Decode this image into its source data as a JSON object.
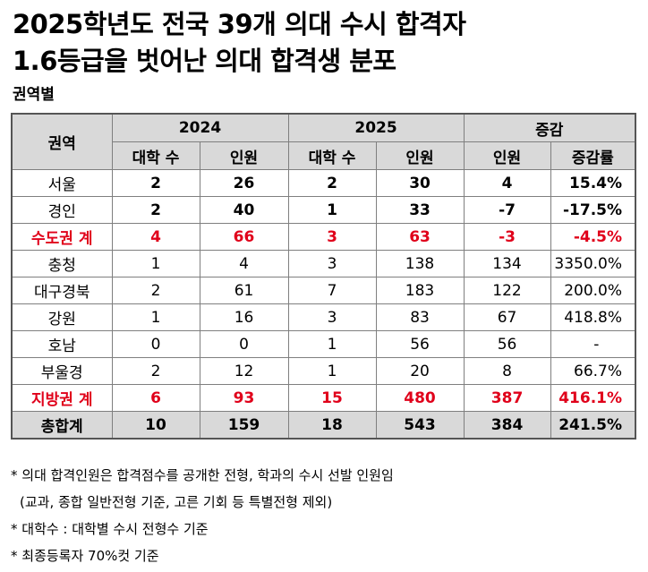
{
  "title_line1": "2025학년도 전국 39개 의대 수시 합격자",
  "title_line2": "1.6등급을 벗어난 의대 합격생 분포",
  "section_label": "권역별",
  "table": {
    "header": {
      "region": "권역",
      "y2024": "2024",
      "y2025": "2025",
      "change": "증감",
      "univ_count": "대학 수",
      "people": "인원",
      "rate": "증감률"
    },
    "rows": [
      {
        "region": "서울",
        "u24": "2",
        "p24": "26",
        "u25": "2",
        "p25": "30",
        "diff": "4",
        "rate": "15.4%",
        "style": "bold"
      },
      {
        "region": "경인",
        "u24": "2",
        "p24": "40",
        "u25": "1",
        "p25": "33",
        "diff": "-7",
        "rate": "-17.5%",
        "style": "bold"
      },
      {
        "region": "수도권 계",
        "u24": "4",
        "p24": "66",
        "u25": "3",
        "p25": "63",
        "diff": "-3",
        "rate": "-4.5%",
        "style": "sub"
      },
      {
        "region": "충청",
        "u24": "1",
        "p24": "4",
        "u25": "3",
        "p25": "138",
        "diff": "134",
        "rate": "3350.0%",
        "style": "normal"
      },
      {
        "region": "대구경북",
        "u24": "2",
        "p24": "61",
        "u25": "7",
        "p25": "183",
        "diff": "122",
        "rate": "200.0%",
        "style": "normal"
      },
      {
        "region": "강원",
        "u24": "1",
        "p24": "16",
        "u25": "3",
        "p25": "83",
        "diff": "67",
        "rate": "418.8%",
        "style": "normal"
      },
      {
        "region": "호남",
        "u24": "0",
        "p24": "0",
        "u25": "1",
        "p25": "56",
        "diff": "56",
        "rate": "-",
        "style": "normal"
      },
      {
        "region": "부울경",
        "u24": "2",
        "p24": "12",
        "u25": "1",
        "p25": "20",
        "diff": "8",
        "rate": "66.7%",
        "style": "normal"
      },
      {
        "region": "지방권 계",
        "u24": "6",
        "p24": "93",
        "u25": "15",
        "p25": "480",
        "diff": "387",
        "rate": "416.1%",
        "style": "sub"
      },
      {
        "region": "총합계",
        "u24": "10",
        "p24": "159",
        "u25": "18",
        "p25": "543",
        "diff": "384",
        "rate": "241.5%",
        "style": "total"
      }
    ]
  },
  "notes": {
    "n1": "* 의대 합격인원은 합격점수를 공개한 전형, 학과의 수시 선발 인원임",
    "n1b": "(교과, 종합 일반전형 기준, 고른 기회 등 특별전형 제외)",
    "n2": "* 대학수 :  대학별 수시 전형수 기준",
    "n3": "* 최종등록자 70%컷 기준"
  },
  "colors": {
    "header_bg": "#d9d9d9",
    "subtotal_text": "#e0001a"
  }
}
